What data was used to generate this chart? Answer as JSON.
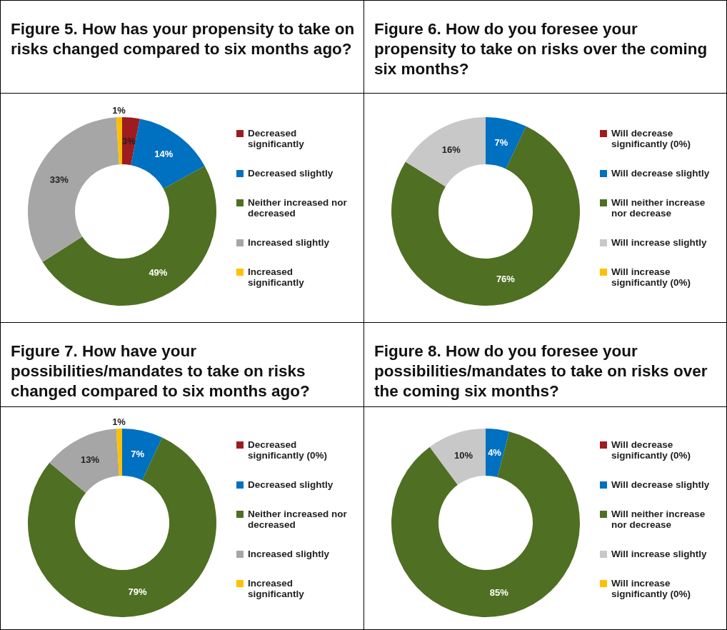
{
  "chart_data": [
    {
      "type": "donut",
      "title": "Figure 5. How has your propensity to take on risks changed compared to six months ago?",
      "categories": [
        "Decreased significantly",
        "Decreased slightly",
        "Neither increased nor decreased",
        "Increased slightly",
        "Increased significantly"
      ],
      "values": [
        3,
        14,
        49,
        33,
        1
      ],
      "colors": [
        "#9e1b20",
        "#0070c0",
        "#4f6f22",
        "#a6a6a6",
        "#ffc000"
      ],
      "value_labels": [
        "3%",
        "14%",
        "49%",
        "33%",
        "1%"
      ],
      "legend": "right"
    },
    {
      "type": "donut",
      "title": "Figure 6. How do you foresee your propensity to take on risks over the coming six months?",
      "categories": [
        "Will decrease significantly (0%)",
        "Will decrease slightly",
        "Will neither increase nor decrease",
        "Will increase slightly",
        "Will increase significantly (0%)"
      ],
      "values": [
        0,
        7,
        76,
        16,
        0
      ],
      "colors": [
        "#9e1b20",
        "#0070c0",
        "#4f6f22",
        "#c8c8c8",
        "#ffc000"
      ],
      "value_labels": [
        null,
        "7%",
        "76%",
        "16%",
        null
      ],
      "legend": "right"
    },
    {
      "type": "donut",
      "title": "Figure 7. How have your possibilities/mandates to take on risks changed compared to six months ago?",
      "categories": [
        "Decreased significantly (0%)",
        "Decreased slightly",
        "Neither increased nor decreased",
        "Increased slightly",
        "Increased significantly"
      ],
      "values": [
        0,
        7,
        79,
        13,
        1
      ],
      "colors": [
        "#9e1b20",
        "#0070c0",
        "#4f6f22",
        "#a6a6a6",
        "#ffc000"
      ],
      "value_labels": [
        null,
        "7%",
        "79%",
        "13%",
        "1%"
      ],
      "legend": "right"
    },
    {
      "type": "donut",
      "title": "Figure 8. How do you foresee your possibilities/mandates to take on risks over the coming six months?",
      "categories": [
        "Will decrease significantly (0%)",
        "Will decrease slightly",
        "Will neither increase nor decrease",
        "Will increase slightly",
        "Will increase significantly (0%)"
      ],
      "values": [
        0,
        4,
        85,
        10,
        0
      ],
      "colors": [
        "#9e1b20",
        "#0070c0",
        "#4f6f22",
        "#c8c8c8",
        "#ffc000"
      ],
      "value_labels": [
        null,
        "4%",
        "85%",
        "10%",
        null
      ],
      "legend": "right"
    }
  ]
}
